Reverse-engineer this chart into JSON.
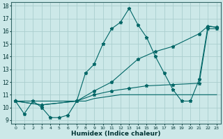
{
  "xlabel": "Humidex (Indice chaleur)",
  "background_color": "#cce8e8",
  "grid_color": "#aacece",
  "line_color": "#006666",
  "xlim": [
    -0.5,
    23.5
  ],
  "ylim": [
    8.7,
    18.3
  ],
  "xtick_labels": [
    "0",
    "1",
    "2",
    "3",
    "4",
    "5",
    "6",
    "7",
    "8",
    "9",
    "10",
    "11",
    "12",
    "13",
    "14",
    "15",
    "16",
    "17",
    "18",
    "19",
    "20",
    "21",
    "22",
    "23"
  ],
  "ytick_labels": [
    "9",
    "10",
    "11",
    "12",
    "13",
    "14",
    "15",
    "16",
    "17",
    "18"
  ],
  "ytick_vals": [
    9,
    10,
    11,
    12,
    13,
    14,
    15,
    16,
    17,
    18
  ],
  "line1_x": [
    0,
    1,
    2,
    3,
    4,
    5,
    6,
    7,
    8,
    9,
    10,
    11,
    12,
    13,
    14,
    15,
    16,
    17,
    18,
    19,
    20,
    21,
    22,
    23
  ],
  "line1_y": [
    10.5,
    9.5,
    10.5,
    10.0,
    9.2,
    9.2,
    9.4,
    10.5,
    12.7,
    13.4,
    15.0,
    16.2,
    16.7,
    17.8,
    16.5,
    15.5,
    14.0,
    12.7,
    11.4,
    10.5,
    10.5,
    12.2,
    16.4,
    16.3
  ],
  "line2_x": [
    0,
    1,
    2,
    3,
    4,
    5,
    6,
    7,
    8,
    9,
    10,
    11,
    12,
    13,
    14,
    15,
    16,
    17,
    18,
    19,
    20,
    21,
    22,
    23
  ],
  "line2_y": [
    10.5,
    10.5,
    10.5,
    10.5,
    10.5,
    10.5,
    10.5,
    10.5,
    10.5,
    10.7,
    10.8,
    10.9,
    11.0,
    11.0,
    11.0,
    11.0,
    11.0,
    11.0,
    11.0,
    11.0,
    11.0,
    11.0,
    11.0,
    11.0
  ],
  "line3_x": [
    0,
    3,
    7,
    9,
    11,
    13,
    15,
    18,
    21,
    22,
    23
  ],
  "line3_y": [
    10.5,
    10.2,
    10.5,
    11.0,
    11.3,
    11.5,
    11.7,
    11.8,
    11.9,
    16.2,
    16.2
  ],
  "line4_x": [
    0,
    3,
    7,
    9,
    11,
    14,
    16,
    18,
    21,
    22,
    23
  ],
  "line4_y": [
    10.5,
    10.2,
    10.5,
    11.3,
    12.0,
    13.8,
    14.4,
    14.8,
    15.8,
    16.4,
    16.3
  ]
}
